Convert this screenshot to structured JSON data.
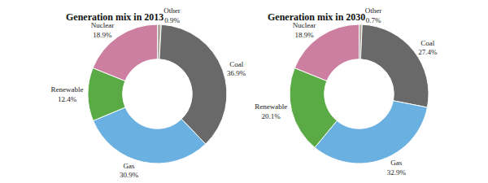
{
  "chart_data": [
    {
      "type": "donut",
      "title": "Generation mix in 2013",
      "categories": [
        "Other",
        "Coal",
        "Gas",
        "Renewable",
        "Nuclear"
      ],
      "values": [
        0.9,
        36.9,
        30.9,
        12.4,
        18.9
      ],
      "value_labels": [
        "0.9%",
        "36.9%",
        "30.9%",
        "12.4%",
        "18.9%"
      ],
      "colors": [
        "#b5aba3",
        "#696969",
        "#6ab0e0",
        "#5aaa46",
        "#cc7fa0"
      ],
      "data_labels": true
    },
    {
      "type": "donut",
      "title": "Generation mix in 2030",
      "categories": [
        "Other",
        "Coal",
        "Gas",
        "Renewable",
        "Nuclear"
      ],
      "values": [
        0.7,
        27.4,
        32.9,
        20.1,
        18.9
      ],
      "value_labels": [
        "0.7%",
        "27.4%",
        "32.9%",
        "20.1%",
        "18.9%"
      ],
      "colors": [
        "#b5aba3",
        "#696969",
        "#6ab0e0",
        "#5aaa46",
        "#cc7fa0"
      ],
      "data_labels": true
    }
  ]
}
